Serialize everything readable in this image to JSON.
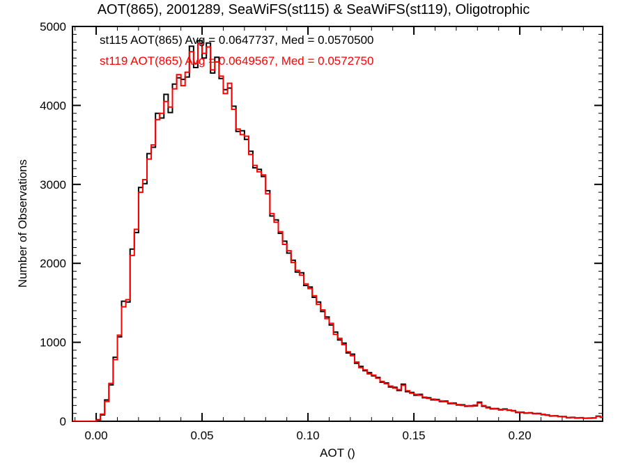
{
  "title": "AOT(865), 2001289, SeaWiFS(st115) & SeaWiFS(st119), Oligotrophic",
  "legend": [
    {
      "label": "st115 AOT(865) Avg = 0.0647737, Med = 0.0570500",
      "color": "#000000"
    },
    {
      "label": "st119 AOT(865) Avg = 0.0649567, Med = 0.0572750",
      "color": "#ff0000"
    }
  ],
  "colors": {
    "background": "#ffffff",
    "frame": "#000000",
    "st115": "#000000",
    "st119": "#ff0000"
  },
  "chart_data": {
    "type": "histogram-step",
    "title": "AOT(865), 2001289, SeaWiFS(st115) & SeaWiFS(st119), Oligotrophic",
    "xlabel": "AOT ()",
    "ylabel": "Number of Observations",
    "xlim": [
      -0.0112,
      0.2391
    ],
    "ylim": [
      0,
      5000
    ],
    "x_major_ticks": [
      0.0,
      0.05,
      0.1,
      0.15,
      0.2
    ],
    "x_tick_labels": [
      "0.00",
      "0.05",
      "0.10",
      "0.15",
      "0.20"
    ],
    "x_minor_step": 0.01,
    "y_major_ticks": [
      0,
      1000,
      2000,
      3000,
      4000,
      5000
    ],
    "y_tick_labels": [
      "0",
      "1000",
      "2000",
      "3000",
      "4000",
      "5000"
    ],
    "y_minor_step": 100,
    "grid": false,
    "legend_position": "top-left-inside",
    "bin_start": -0.012,
    "bin_width": 0.002,
    "series": [
      {
        "name": "st115",
        "color": "#000000",
        "avg": 0.0647737,
        "med": 0.05705,
        "values": [
          0,
          0,
          0,
          0,
          0,
          0,
          20,
          80,
          270,
          460,
          810,
          1070,
          1520,
          1510,
          2180,
          2390,
          2960,
          3010,
          3390,
          3470,
          3900,
          3840,
          4140,
          3910,
          4270,
          4350,
          4330,
          4360,
          4750,
          4480,
          4820,
          4600,
          4790,
          4410,
          4610,
          4340,
          4200,
          4220,
          3990,
          3670,
          3680,
          3570,
          3420,
          3210,
          3190,
          3100,
          2920,
          2600,
          2550,
          2380,
          2280,
          2130,
          2040,
          1890,
          1880,
          1720,
          1700,
          1570,
          1510,
          1390,
          1320,
          1220,
          1130,
          1030,
          990,
          865,
          850,
          735,
          695,
          640,
          615,
          575,
          555,
          495,
          485,
          435,
          430,
          390,
          470,
          375,
          365,
          330,
          340,
          297,
          298,
          272,
          276,
          250,
          256,
          224,
          230,
          206,
          208,
          190,
          196,
          197,
          242,
          190,
          178,
          156,
          161,
          145,
          155,
          139,
          135,
          111,
          115,
          102,
          108,
          96,
          99,
          84,
          80,
          66,
          70,
          59,
          59,
          45,
          49,
          41,
          45,
          37,
          41,
          41,
          65,
          49
        ]
      },
      {
        "name": "st119",
        "color": "#ff0000",
        "avg": 0.0649567,
        "med": 0.057275,
        "values": [
          0,
          0,
          0,
          0,
          0,
          0,
          15,
          90,
          250,
          480,
          780,
          1090,
          1450,
          1540,
          2100,
          2430,
          2900,
          3060,
          3320,
          3500,
          3820,
          3900,
          4050,
          3980,
          4210,
          4390,
          4250,
          4420,
          4680,
          4530,
          4780,
          4660,
          4740,
          4450,
          4550,
          4370,
          4150,
          4280,
          3950,
          3700,
          3630,
          3610,
          3380,
          3240,
          3160,
          3120,
          2880,
          2630,
          2520,
          2400,
          2240,
          2160,
          2010,
          1910,
          1850,
          1740,
          1680,
          1590,
          1480,
          1410,
          1300,
          1240,
          1100,
          1050,
          970,
          880,
          830,
          750,
          680,
          650,
          600,
          585,
          545,
          505,
          475,
          445,
          420,
          400,
          455,
          385,
          355,
          340,
          330,
          305,
          290,
          280,
          268,
          258,
          248,
          232,
          222,
          212,
          202,
          196,
          190,
          205,
          232,
          198,
          170,
          162,
          155,
          150,
          150,
          144,
          130,
          116,
          110,
          106,
          104,
          100,
          95,
          88,
          76,
          70,
          66,
          62,
          56,
          48,
          46,
          44,
          42,
          40,
          38,
          44,
          62,
          52
        ]
      }
    ]
  }
}
